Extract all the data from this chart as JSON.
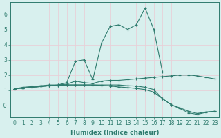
{
  "xlabel": "Humidex (Indice chaleur)",
  "x": [
    0,
    1,
    2,
    3,
    4,
    5,
    6,
    7,
    8,
    9,
    10,
    11,
    12,
    13,
    14,
    15,
    16,
    17,
    18,
    19,
    20,
    21,
    22,
    23
  ],
  "line1": [
    1.1,
    1.2,
    1.25,
    1.3,
    1.35,
    1.35,
    1.4,
    1.6,
    1.5,
    1.45,
    1.6,
    1.65,
    1.65,
    1.7,
    1.75,
    1.8,
    1.85,
    1.9,
    1.95,
    2.0,
    2.0,
    1.95,
    1.85,
    1.75
  ],
  "line2": [
    1.1,
    1.15,
    1.2,
    1.25,
    1.3,
    1.35,
    1.5,
    2.9,
    3.0,
    1.7,
    4.1,
    5.2,
    5.3,
    5.0,
    5.3,
    6.4,
    5.0,
    2.2,
    null,
    null,
    null,
    null,
    null,
    null
  ],
  "line3": [
    1.1,
    1.15,
    1.2,
    1.25,
    1.3,
    1.32,
    1.35,
    1.35,
    1.35,
    1.35,
    1.35,
    1.35,
    1.35,
    1.3,
    1.28,
    1.2,
    1.05,
    0.45,
    0.05,
    -0.15,
    -0.38,
    -0.52,
    -0.42,
    -0.38
  ],
  "line4": [
    1.1,
    1.15,
    1.2,
    1.25,
    1.3,
    1.32,
    1.35,
    1.35,
    1.35,
    1.35,
    1.32,
    1.28,
    1.22,
    1.18,
    1.12,
    1.05,
    0.88,
    0.45,
    0.05,
    -0.2,
    -0.48,
    -0.58,
    -0.45,
    -0.38
  ],
  "line_color": "#2e7b6e",
  "bg_color": "#d8f0ee",
  "grid_color": "#e8d0d8",
  "ylim": [
    -0.75,
    6.8
  ],
  "xlim": [
    -0.5,
    23.5
  ],
  "yticks": [
    0,
    1,
    2,
    3,
    4,
    5,
    6
  ],
  "ytick_labels": [
    "-0",
    "1",
    "2",
    "3",
    "4",
    "5",
    "6"
  ],
  "xticks": [
    0,
    1,
    2,
    3,
    4,
    5,
    6,
    7,
    8,
    9,
    10,
    11,
    12,
    13,
    14,
    15,
    16,
    17,
    18,
    19,
    20,
    21,
    22,
    23
  ],
  "tick_fontsize": 5.5,
  "label_fontsize": 6.5,
  "marker": "+",
  "markersize": 3.5,
  "linewidth": 0.8
}
